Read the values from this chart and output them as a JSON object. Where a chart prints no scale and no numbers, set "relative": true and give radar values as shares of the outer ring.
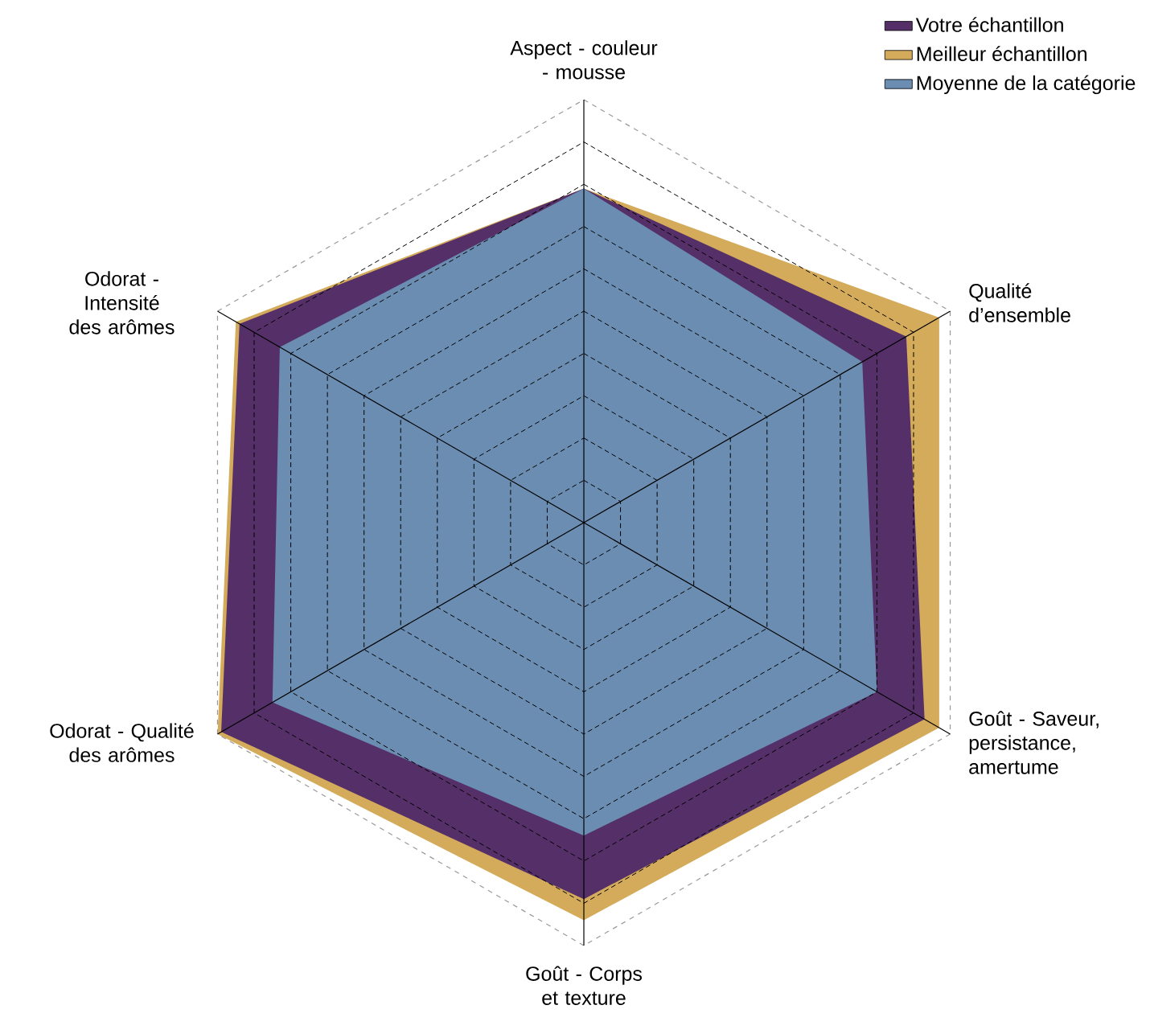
{
  "chart_data": {
    "type": "radar",
    "relative": true,
    "grid": true,
    "legend": "top right",
    "categories": [
      "Aspect - couleur - mousse",
      "Qualité d’ensemble",
      "Goût - Saveur, persistance, amertume",
      "Goût - Corps et texture",
      "Odorat - Qualité des arômes",
      "Odorat - Intensité des arômes"
    ],
    "series": [
      {
        "name": "Votre échantillon",
        "color": "#552f68",
        "values": [
          0.79,
          0.88,
          0.93,
          0.89,
          0.99,
          0.94
        ]
      },
      {
        "name": "Meilleur échantillon",
        "color": "#d4ab5a",
        "values": [
          0.79,
          0.97,
          0.97,
          0.94,
          1.0,
          0.95
        ]
      },
      {
        "name": "Moyenne de la catégorie",
        "color": "#6a8db1",
        "values": [
          0.79,
          0.76,
          0.8,
          0.74,
          0.85,
          0.83
        ]
      }
    ]
  }
}
